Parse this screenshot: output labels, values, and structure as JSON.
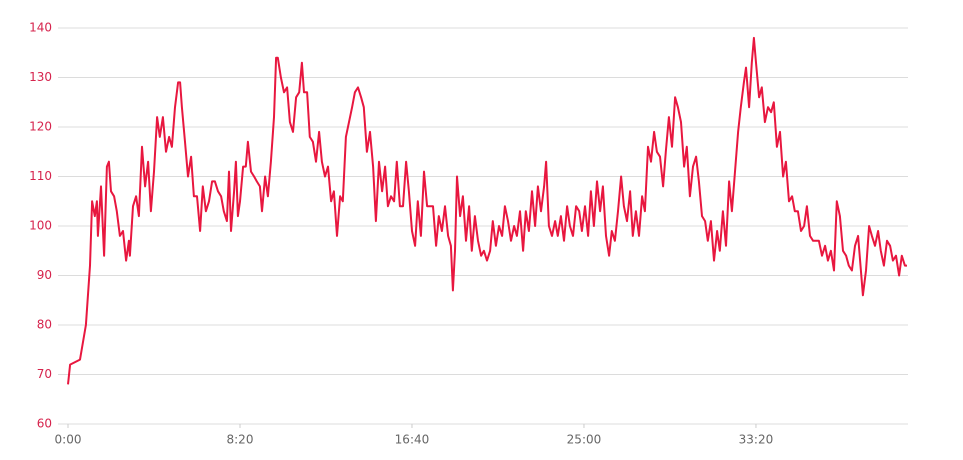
{
  "chart_data": {
    "type": "line",
    "x": [
      0,
      6,
      35,
      52,
      64,
      70,
      78,
      84,
      87,
      96,
      105,
      113,
      119,
      125,
      134,
      142,
      151,
      160,
      169,
      177,
      180,
      189,
      198,
      206,
      215,
      224,
      233,
      241,
      250,
      259,
      267,
      276,
      285,
      294,
      302,
      311,
      320,
      326,
      331,
      340,
      349,
      358,
      366,
      375,
      384,
      392,
      401,
      410,
      419,
      427,
      436,
      445,
      453,
      462,
      468,
      474,
      483,
      488,
      494,
      500,
      509,
      517,
      523,
      532,
      541,
      549,
      558,
      564,
      573,
      581,
      590,
      599,
      605,
      610,
      619,
      628,
      637,
      645,
      654,
      663,
      672,
      680,
      686,
      695,
      703,
      712,
      721,
      730,
      738,
      747,
      756,
      765,
      773,
      782,
      791,
      799,
      808,
      817,
      826,
      834,
      843,
      852,
      860,
      869,
      878,
      887,
      895,
      904,
      913,
      922,
      930,
      939,
      948,
      956,
      965,
      974,
      983,
      991,
      1000,
      1009,
      1017,
      1026,
      1035,
      1044,
      1052,
      1061,
      1070,
      1078,
      1087,
      1096,
      1105,
      1113,
      1119,
      1125,
      1131,
      1140,
      1148,
      1157,
      1166,
      1174,
      1183,
      1192,
      1201,
      1209,
      1218,
      1227,
      1235,
      1244,
      1253,
      1262,
      1270,
      1279,
      1288,
      1297,
      1305,
      1314,
      1323,
      1331,
      1340,
      1349,
      1358,
      1366,
      1375,
      1384,
      1390,
      1398,
      1407,
      1416,
      1424,
      1433,
      1442,
      1451,
      1459,
      1468,
      1477,
      1486,
      1494,
      1503,
      1512,
      1520,
      1529,
      1538,
      1547,
      1555,
      1564,
      1573,
      1581,
      1590,
      1599,
      1608,
      1616,
      1625,
      1634,
      1642,
      1651,
      1660,
      1669,
      1677,
      1686,
      1695,
      1704,
      1712,
      1721,
      1730,
      1738,
      1747,
      1756,
      1765,
      1773,
      1782,
      1791,
      1799,
      1808,
      1817,
      1826,
      1834,
      1843,
      1852,
      1860,
      1869,
      1878,
      1887,
      1895,
      1904,
      1913,
      1922,
      1930,
      1939,
      1948,
      1956,
      1965,
      1971,
      1980,
      1988,
      1994,
      2000,
      2009,
      2017,
      2026,
      2035,
      2044,
      2052,
      2061,
      2070,
      2079,
      2087,
      2096,
      2105,
      2113,
      2122,
      2131,
      2140,
      2148,
      2157,
      2166,
      2174,
      2183,
      2192,
      2201,
      2209,
      2218,
      2227,
      2235,
      2244,
      2253,
      2262,
      2270,
      2279,
      2288,
      2297,
      2305,
      2311,
      2320,
      2329,
      2337,
      2346,
      2355,
      2363,
      2372,
      2381,
      2390,
      2398,
      2407,
      2416,
      2424,
      2433,
      2439
    ],
    "values": [
      68,
      72,
      73,
      80,
      92,
      105,
      102,
      105,
      98,
      108,
      94,
      112,
      113,
      107,
      106,
      103,
      98,
      99,
      93,
      97,
      94,
      104,
      106,
      102,
      116,
      108,
      113,
      103,
      111,
      122,
      118,
      122,
      115,
      118,
      116,
      124,
      129,
      129,
      124,
      117,
      110,
      114,
      106,
      106,
      99,
      108,
      103,
      105,
      109,
      109,
      107,
      106,
      103,
      101,
      111,
      99,
      107,
      113,
      102,
      105,
      112,
      112,
      117,
      111,
      110,
      109,
      108,
      103,
      110,
      106,
      113,
      122,
      134,
      134,
      130,
      127,
      128,
      121,
      119,
      126,
      127,
      133,
      127,
      127,
      118,
      117,
      113,
      119,
      113,
      110,
      112,
      105,
      107,
      98,
      106,
      105,
      118,
      121,
      124,
      127,
      128,
      126,
      124,
      115,
      119,
      112,
      101,
      113,
      107,
      112,
      104,
      106,
      105,
      113,
      104,
      104,
      113,
      107,
      99,
      96,
      105,
      98,
      111,
      104,
      104,
      104,
      96,
      102,
      99,
      104,
      98,
      96,
      87,
      95,
      110,
      102,
      106,
      97,
      104,
      95,
      102,
      97,
      94,
      95,
      93,
      95,
      101,
      96,
      100,
      98,
      104,
      101,
      97,
      100,
      98,
      103,
      95,
      103,
      99,
      107,
      100,
      108,
      103,
      108,
      113,
      100,
      98,
      101,
      98,
      102,
      97,
      104,
      100,
      98,
      104,
      103,
      99,
      104,
      98,
      107,
      100,
      109,
      103,
      108,
      98,
      94,
      99,
      97,
      103,
      110,
      104,
      101,
      107,
      98,
      103,
      98,
      106,
      103,
      116,
      113,
      119,
      115,
      114,
      108,
      115,
      122,
      116,
      126,
      124,
      121,
      112,
      116,
      106,
      112,
      114,
      109,
      102,
      101,
      97,
      101,
      93,
      99,
      95,
      103,
      96,
      109,
      103,
      111,
      119,
      124,
      129,
      132,
      124,
      133,
      138,
      133,
      126,
      128,
      121,
      124,
      123,
      125,
      116,
      119,
      110,
      113,
      105,
      106,
      103,
      103,
      99,
      100,
      104,
      98,
      97,
      97,
      97,
      94,
      96,
      93,
      95,
      91,
      105,
      102,
      95,
      94,
      92,
      91,
      96,
      98,
      91,
      86,
      91,
      100,
      98,
      96,
      99,
      95,
      92,
      97,
      96,
      93,
      94,
      90,
      94,
      92,
      92
    ],
    "color": "#e8173f",
    "xlim": [
      0,
      2442
    ],
    "xticks": [
      {
        "value": 0,
        "label": "0:00"
      },
      {
        "value": 500,
        "label": "8:20"
      },
      {
        "value": 1000,
        "label": "16:40"
      },
      {
        "value": 1500,
        "label": "25:00"
      },
      {
        "value": 2000,
        "label": "33:20"
      }
    ],
    "ylim": [
      60,
      140
    ],
    "yticks": [
      60,
      70,
      80,
      90,
      100,
      110,
      120,
      130,
      140
    ],
    "grid": true
  }
}
